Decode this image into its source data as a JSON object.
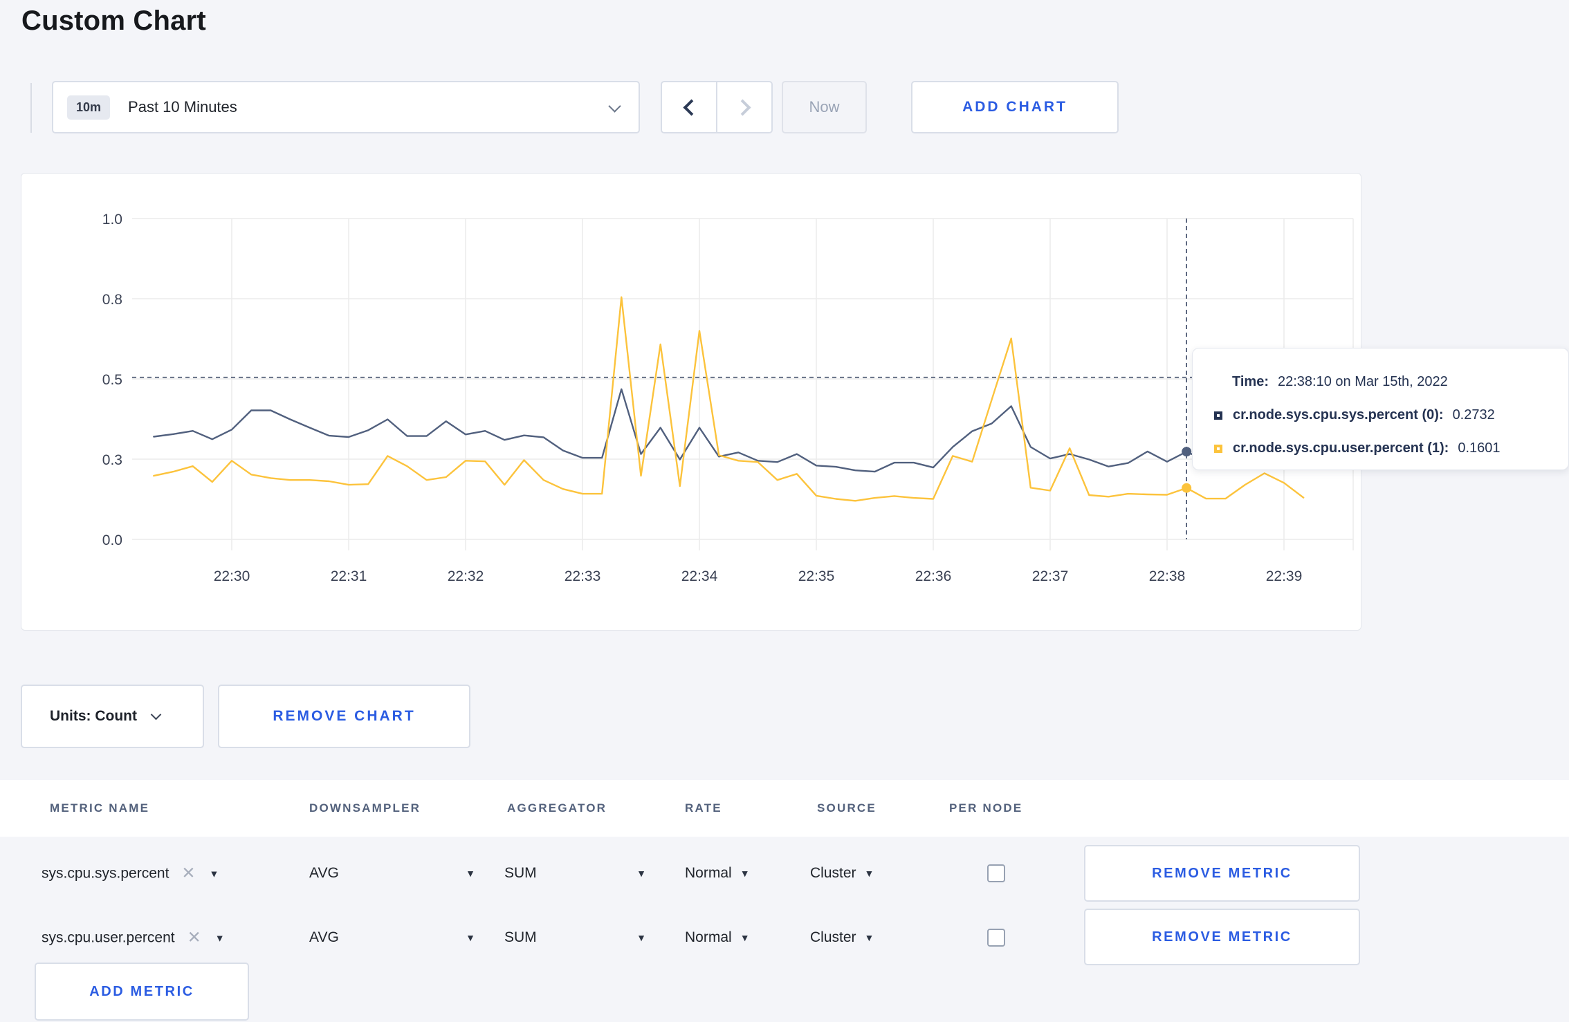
{
  "page": {
    "title": "Custom Chart"
  },
  "toolbar": {
    "timescale": {
      "badge": "10m",
      "label": "Past 10 Minutes"
    },
    "now_label": "Now",
    "add_chart_label": "ADD CHART"
  },
  "chart_controls": {
    "units_label": "Units: Count",
    "remove_chart_label": "REMOVE CHART"
  },
  "tooltip": {
    "time_label": "Time:",
    "time_value": "22:38:10 on Mar 15th, 2022",
    "series": [
      {
        "name": "cr.node.sys.cpu.sys.percent (0):",
        "value": "0.2732",
        "color": "#253352"
      },
      {
        "name": "cr.node.sys.cpu.user.percent (1):",
        "value": "0.1601",
        "color": "#fcc33c"
      }
    ]
  },
  "metrics_table": {
    "headers": [
      "METRIC NAME",
      "DOWNSAMPLER",
      "AGGREGATOR",
      "RATE",
      "SOURCE",
      "PER NODE"
    ],
    "rows": [
      {
        "metric": "sys.cpu.sys.percent",
        "downsampler": "AVG",
        "aggregator": "SUM",
        "rate": "Normal",
        "source": "Cluster",
        "per_node_checked": false,
        "remove_label": "REMOVE METRIC"
      },
      {
        "metric": "sys.cpu.user.percent",
        "downsampler": "AVG",
        "aggregator": "SUM",
        "rate": "Normal",
        "source": "Cluster",
        "per_node_checked": false,
        "remove_label": "REMOVE METRIC"
      }
    ],
    "add_metric_label": "ADD METRIC"
  },
  "colors": {
    "accent_blue": "#2b5ce2",
    "navy_line": "#51607e",
    "yellow_line": "#fcc33c",
    "crosshair": "#47536e",
    "gridline": "#ececec",
    "axis_text": "#3b4254"
  },
  "chart_data": {
    "type": "line",
    "title": "",
    "xlabel": "",
    "ylabel": "",
    "ylim": [
      0,
      1
    ],
    "grid": true,
    "legend_position": "tooltip-overlay",
    "x_start": "22:29:20",
    "step_seconds": 10,
    "x_start_offset_seconds": -40,
    "x_ticks": [
      "22:30",
      "22:31",
      "22:32",
      "22:33",
      "22:34",
      "22:35",
      "22:36",
      "22:37",
      "22:38",
      "22:39"
    ],
    "y_ticks": [
      {
        "value": 0,
        "label": "0.0"
      },
      {
        "value": 0.25,
        "label": "0.3"
      },
      {
        "value": 0.5,
        "label": "0.5"
      },
      {
        "value": 0.75,
        "label": "0.8"
      },
      {
        "value": 1.0,
        "label": "1.0"
      }
    ],
    "series": [
      {
        "name": "cr.node.sys.cpu.sys.percent",
        "color": "#51607e",
        "values": [
          0.32,
          0.328,
          0.338,
          0.312,
          0.342,
          0.402,
          0.402,
          0.374,
          0.348,
          0.323,
          0.319,
          0.34,
          0.374,
          0.322,
          0.322,
          0.368,
          0.327,
          0.338,
          0.31,
          0.324,
          0.318,
          0.277,
          0.254,
          0.254,
          0.468,
          0.266,
          0.348,
          0.249,
          0.348,
          0.258,
          0.271,
          0.245,
          0.241,
          0.266,
          0.23,
          0.226,
          0.215,
          0.211,
          0.239,
          0.239,
          0.224,
          0.288,
          0.337,
          0.361,
          0.415,
          0.288,
          0.252,
          0.266,
          0.249,
          0.227,
          0.238,
          0.274,
          0.242,
          0.2732,
          0.245,
          0.258,
          0.27,
          0.285,
          0.298,
          0.29
        ]
      },
      {
        "name": "cr.node.sys.cpu.user.percent",
        "color": "#fcc33c",
        "values": [
          0.198,
          0.211,
          0.228,
          0.179,
          0.245,
          0.202,
          0.191,
          0.185,
          0.185,
          0.181,
          0.17,
          0.172,
          0.26,
          0.228,
          0.185,
          0.194,
          0.245,
          0.243,
          0.17,
          0.247,
          0.185,
          0.157,
          0.142,
          0.142,
          0.755,
          0.198,
          0.608,
          0.166,
          0.65,
          0.262,
          0.245,
          0.241,
          0.185,
          0.204,
          0.136,
          0.126,
          0.12,
          0.129,
          0.135,
          0.129,
          0.126,
          0.26,
          0.242,
          0.435,
          0.626,
          0.161,
          0.152,
          0.284,
          0.138,
          0.133,
          0.142,
          0.14,
          0.139,
          0.1601,
          0.127,
          0.127,
          0.17,
          0.206,
          0.176,
          0.13
        ]
      }
    ],
    "crosshair": {
      "time": "22:38:10",
      "x_offset_seconds": 490,
      "y_value": 0.505,
      "point_index": 53
    }
  }
}
